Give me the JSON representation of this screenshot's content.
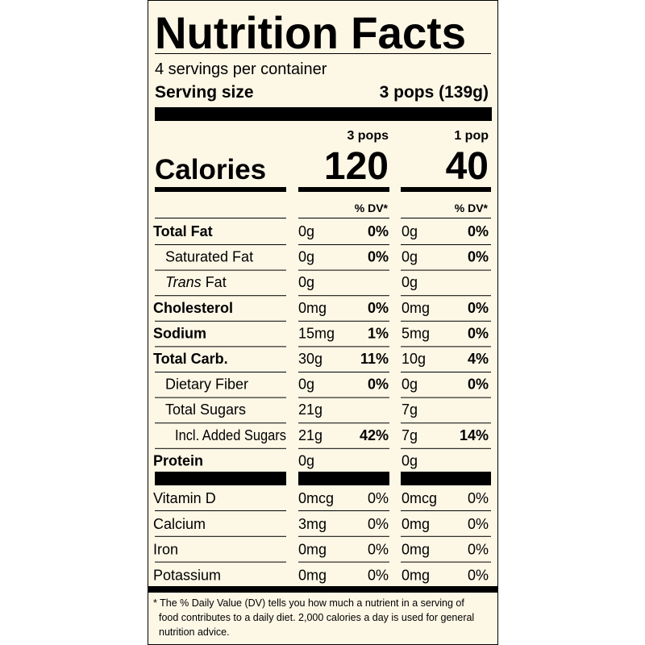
{
  "title": "Nutrition Facts",
  "servings": "4 servings per container",
  "serving_size": {
    "label": "Serving size",
    "value": "3 pops (139g)"
  },
  "calories_label": "Calories",
  "columns": [
    {
      "header": "3 pops",
      "calories": 120,
      "dv_header": "% DV*"
    },
    {
      "header": "1 pop",
      "calories": 40,
      "dv_header": "% DV*"
    }
  ],
  "nutrients": [
    {
      "name": "Total Fat",
      "style": "bold",
      "amounts": [
        {
          "amount": "0g",
          "dv": "0%"
        },
        {
          "amount": "0g",
          "dv": "0%"
        }
      ]
    },
    {
      "name": "Saturated Fat",
      "style": "indent",
      "amounts": [
        {
          "amount": "0g",
          "dv": "0%"
        },
        {
          "amount": "0g",
          "dv": "0%"
        }
      ]
    },
    {
      "italic": "Trans",
      "name": "Fat",
      "style": "indent",
      "amounts": [
        {
          "amount": "0g"
        },
        {
          "amount": "0g"
        }
      ]
    },
    {
      "name": "Cholesterol",
      "style": "bold",
      "amounts": [
        {
          "amount": "0mg",
          "dv": "0%"
        },
        {
          "amount": "0mg",
          "dv": "0%"
        }
      ]
    },
    {
      "name": "Sodium",
      "style": "bold",
      "amounts": [
        {
          "amount": "15mg",
          "dv": "1%"
        },
        {
          "amount": "5mg",
          "dv": "0%"
        }
      ]
    },
    {
      "name": "Total Carb.",
      "style": "bold",
      "amounts": [
        {
          "amount": "30g",
          "dv": "11%"
        },
        {
          "amount": "10g",
          "dv": "4%"
        }
      ]
    },
    {
      "name": "Dietary Fiber",
      "style": "indent",
      "amounts": [
        {
          "amount": "0g",
          "dv": "0%"
        },
        {
          "amount": "0g",
          "dv": "0%"
        }
      ]
    },
    {
      "name": "Total Sugars",
      "style": "indent",
      "amounts": [
        {
          "amount": "21g"
        },
        {
          "amount": "7g"
        }
      ]
    },
    {
      "name": "Incl. Added Sugars",
      "style": "indent2",
      "amounts": [
        {
          "amount": "21g",
          "dv": "42%"
        },
        {
          "amount": "7g",
          "dv": "14%"
        }
      ]
    },
    {
      "name": "Protein",
      "style": "bold",
      "amounts": [
        {
          "amount": "0g"
        },
        {
          "amount": "0g"
        }
      ]
    }
  ],
  "vitamins": [
    {
      "name": "Vitamin D",
      "amounts": [
        {
          "amount": "0mcg",
          "dv": "0%"
        },
        {
          "amount": "0mcg",
          "dv": "0%"
        }
      ]
    },
    {
      "name": "Calcium",
      "amounts": [
        {
          "amount": "3mg",
          "dv": "0%"
        },
        {
          "amount": "0mg",
          "dv": "0%"
        }
      ]
    },
    {
      "name": "Iron",
      "amounts": [
        {
          "amount": "0mg",
          "dv": "0%"
        },
        {
          "amount": "0mg",
          "dv": "0%"
        }
      ]
    },
    {
      "name": "Potassium",
      "amounts": [
        {
          "amount": "0mg",
          "dv": "0%"
        },
        {
          "amount": "0mg",
          "dv": "0%"
        }
      ]
    }
  ],
  "footnote": [
    "* The % Daily Value (DV) tells you how much a nutrient in a serving of",
    "food contributes to a daily diet. 2,000 calories a day is used for general",
    "nutrition advice."
  ]
}
